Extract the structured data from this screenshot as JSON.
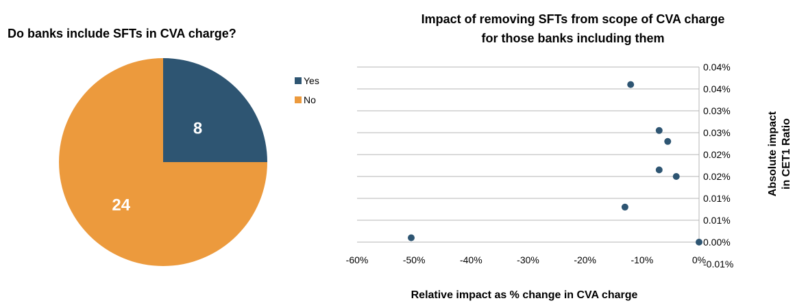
{
  "chart_data": [
    {
      "type": "pie",
      "title": "Do banks include SFTs in CVA charge?",
      "slices": [
        {
          "label": "Yes",
          "value": 8,
          "color": "#2e5572"
        },
        {
          "label": "No",
          "value": 24,
          "color": "#ec9a3d"
        }
      ],
      "legend": {
        "position": "right",
        "entries": [
          "Yes",
          "No"
        ]
      }
    },
    {
      "type": "scatter",
      "title_lines": [
        "Impact of removing SFTs from scope of CVA charge",
        "for those banks including them"
      ],
      "xlabel": "Relative impact as % change in CVA charge",
      "ylabel_lines": [
        "Absolute impact",
        "in CET1 Ratio"
      ],
      "xlim": [
        -0.6,
        0
      ],
      "ylim": [
        -5e-05,
        0.0004
      ],
      "x_ticks": [
        -0.6,
        -0.5,
        -0.4,
        -0.3,
        -0.2,
        -0.1,
        0
      ],
      "x_tick_labels": [
        "-60%",
        "-50%",
        "-40%",
        "-30%",
        "-20%",
        "-10%",
        "0%"
      ],
      "y_ticks": [
        -5e-05,
        0,
        5e-05,
        0.0001,
        0.00015,
        0.0002,
        0.00025,
        0.0003,
        0.00035,
        0.0004
      ],
      "y_tick_labels": [
        "-0.01%",
        "0.00%",
        "0.01%",
        "0.01%",
        "0.02%",
        "0.02%",
        "0.03%",
        "0.03%",
        "0.04%",
        "0.04%"
      ],
      "y_axis_side": "right",
      "grid": "horizontal",
      "marker_color": "#2e5572",
      "points": [
        {
          "x": -0.505,
          "y": 1e-05
        },
        {
          "x": -0.12,
          "y": 0.00036
        },
        {
          "x": -0.07,
          "y": 0.000255
        },
        {
          "x": -0.055,
          "y": 0.00023
        },
        {
          "x": -0.07,
          "y": 0.000165
        },
        {
          "x": -0.04,
          "y": 0.00015
        },
        {
          "x": -0.13,
          "y": 8e-05
        },
        {
          "x": 0.0,
          "y": 0.0
        }
      ]
    }
  ]
}
